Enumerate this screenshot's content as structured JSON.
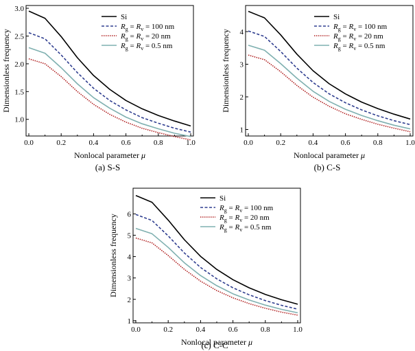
{
  "legend": {
    "entries": [
      {
        "id": "si",
        "parts": [
          {
            "t": "Si"
          }
        ]
      },
      {
        "id": "r100",
        "parts": [
          {
            "t": "R",
            "i": 1
          },
          {
            "t": "g",
            "sub": 1
          },
          {
            "t": " = "
          },
          {
            "t": "R",
            "i": 1
          },
          {
            "t": "v",
            "sub": 1
          },
          {
            "t": " = 100 nm"
          }
        ]
      },
      {
        "id": "r20",
        "parts": [
          {
            "t": "R",
            "i": 1
          },
          {
            "t": "g",
            "sub": 1
          },
          {
            "t": " = "
          },
          {
            "t": "R",
            "i": 1
          },
          {
            "t": "v",
            "sub": 1
          },
          {
            "t": " = 20 nm"
          }
        ]
      },
      {
        "id": "r05",
        "parts": [
          {
            "t": "R",
            "i": 1
          },
          {
            "t": "g",
            "sub": 1
          },
          {
            "t": " = "
          },
          {
            "t": "R",
            "i": 1
          },
          {
            "t": "v",
            "sub": 1
          },
          {
            "t": " = 0.5 nm"
          }
        ]
      }
    ]
  },
  "chart_data": [
    {
      "type": "line",
      "caption": "(a) S-S",
      "xlabel": "Nonlocal parameter",
      "xlabel_symbol": "μ",
      "ylabel": "Dimensionless frequency",
      "xlim": [
        0,
        1.0
      ],
      "ylim": [
        0.7,
        3.05
      ],
      "xticks": [
        "0.0",
        "0.2",
        "0.4",
        "0.6",
        "0.8",
        "1.0"
      ],
      "yticks": [
        "1.0",
        "1.5",
        "2.0",
        "2.5",
        "3.0"
      ],
      "x": [
        0.0,
        0.1,
        0.2,
        0.3,
        0.4,
        0.5,
        0.6,
        0.7,
        0.8,
        0.9,
        1.0
      ],
      "series": [
        {
          "name": "Si",
          "color": "#000000",
          "dash": "",
          "values": [
            2.95,
            2.82,
            2.49,
            2.11,
            1.79,
            1.54,
            1.34,
            1.19,
            1.07,
            0.97,
            0.88
          ]
        },
        {
          "name": "Rg = Rv = 100 nm",
          "color": "#2e3d8f",
          "dash": "4,2.5",
          "values": [
            2.56,
            2.45,
            2.16,
            1.84,
            1.56,
            1.34,
            1.17,
            1.03,
            0.93,
            0.84,
            0.77
          ]
        },
        {
          "name": "Rg = Rv = 20 nm",
          "color": "#b02020",
          "dash": "1.5,1.5",
          "values": [
            2.09,
            2.0,
            1.77,
            1.5,
            1.27,
            1.09,
            0.95,
            0.84,
            0.76,
            0.69,
            0.63
          ]
        },
        {
          "name": "Rg = Rv = 0.5 nm",
          "color": "#7fb0b0",
          "dash": "",
          "values": [
            2.29,
            2.19,
            1.93,
            1.64,
            1.39,
            1.2,
            1.04,
            0.92,
            0.83,
            0.75,
            0.69
          ]
        }
      ]
    },
    {
      "type": "line",
      "caption": "(b) C-S",
      "xlabel": "Nonlocal parameter",
      "xlabel_symbol": "μ",
      "ylabel": "Dimensionless frequency",
      "xlim": [
        0,
        1.0
      ],
      "ylim": [
        0.8,
        4.8
      ],
      "xticks": [
        "0.0",
        "0.2",
        "0.4",
        "0.6",
        "0.8",
        "1.0"
      ],
      "yticks": [
        "1",
        "2",
        "3",
        "4"
      ],
      "x": [
        0.0,
        0.1,
        0.2,
        0.3,
        0.4,
        0.5,
        0.6,
        0.7,
        0.8,
        0.9,
        1.0
      ],
      "series": [
        {
          "name": "Si",
          "color": "#000000",
          "dash": "",
          "values": [
            4.62,
            4.42,
            3.9,
            3.31,
            2.8,
            2.4,
            2.09,
            1.84,
            1.64,
            1.47,
            1.32
          ]
        },
        {
          "name": "Rg = Rv = 100 nm",
          "color": "#2e3d8f",
          "dash": "4,2.5",
          "values": [
            4.02,
            3.85,
            3.39,
            2.88,
            2.44,
            2.09,
            1.82,
            1.6,
            1.42,
            1.27,
            1.15
          ]
        },
        {
          "name": "Rg = Rv = 20 nm",
          "color": "#b02020",
          "dash": "1.5,1.5",
          "values": [
            3.28,
            3.14,
            2.77,
            2.35,
            1.99,
            1.71,
            1.48,
            1.31,
            1.16,
            1.04,
            0.93
          ]
        },
        {
          "name": "Rg = Rv = 0.5 nm",
          "color": "#7fb0b0",
          "dash": "",
          "values": [
            3.58,
            3.43,
            3.02,
            2.57,
            2.17,
            1.86,
            1.62,
            1.43,
            1.27,
            1.13,
            1.02
          ]
        }
      ]
    },
    {
      "type": "line",
      "caption": "(c) C-C",
      "xlabel": "Nonlocal parameter",
      "xlabel_symbol": "μ",
      "ylabel": "Dimensionless frequency",
      "xlim": [
        0,
        1.0
      ],
      "ylim": [
        0.9,
        7.2
      ],
      "xticks": [
        "0.0",
        "0.2",
        "0.4",
        "0.6",
        "0.8",
        "1.0"
      ],
      "yticks": [
        "1",
        "2",
        "3",
        "4",
        "5",
        "6"
      ],
      "x": [
        0.0,
        0.1,
        0.2,
        0.3,
        0.4,
        0.5,
        0.6,
        0.7,
        0.8,
        0.9,
        1.0
      ],
      "series": [
        {
          "name": "Si",
          "color": "#000000",
          "dash": "",
          "values": [
            6.86,
            6.54,
            5.71,
            4.79,
            4.01,
            3.4,
            2.92,
            2.54,
            2.23,
            1.98,
            1.77
          ]
        },
        {
          "name": "Rg = Rv = 100 nm",
          "color": "#2e3d8f",
          "dash": "4,2.5",
          "values": [
            5.97,
            5.69,
            4.97,
            4.17,
            3.49,
            2.96,
            2.54,
            2.21,
            1.94,
            1.72,
            1.54
          ]
        },
        {
          "name": "Rg = Rv = 20 nm",
          "color": "#b02020",
          "dash": "1.5,1.5",
          "values": [
            4.87,
            4.64,
            4.05,
            3.4,
            2.85,
            2.41,
            2.07,
            1.8,
            1.58,
            1.4,
            1.26
          ]
        },
        {
          "name": "Rg = Rv = 0.5 nm",
          "color": "#7fb0b0",
          "dash": "",
          "values": [
            5.32,
            5.07,
            4.43,
            3.71,
            3.11,
            2.64,
            2.26,
            1.97,
            1.73,
            1.53,
            1.37
          ]
        }
      ]
    }
  ]
}
